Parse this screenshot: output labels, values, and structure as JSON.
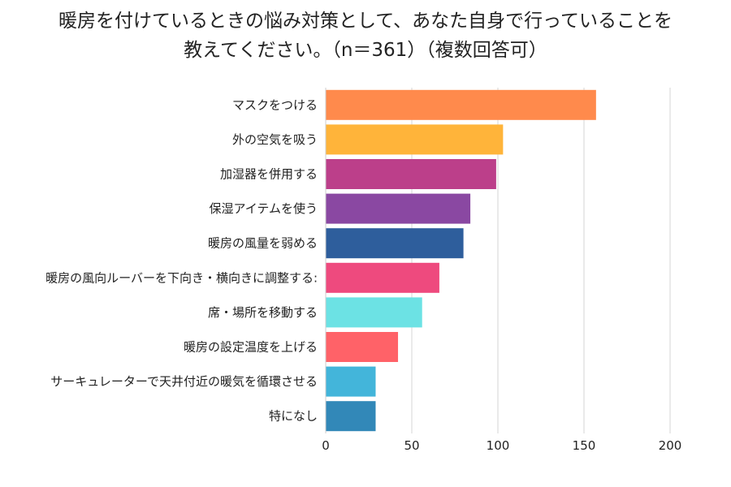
{
  "title_line1": "暖房を付けているときの悩み対策として、あなた自身で行っていることを",
  "title_line2": "教えてください。（n＝361）（複数回答可）",
  "chart_data": {
    "type": "bar",
    "orientation": "horizontal",
    "title": "暖房を付けているときの悩み対策として、あなた自身で行っていることを教えてください。（n＝361）（複数回答可）",
    "categories": [
      "マスクをつける",
      "外の空気を吸う",
      "加湿器を併用する",
      "保湿アイテムを使う",
      "暖房の風量を弱める",
      "暖房の風向ルーバーを下向き・横向きに調整する:",
      "席・場所を移動する",
      "暖房の設定温度を上げる",
      "サーキュレーターで天井付近の暖気を循環させる",
      "特になし"
    ],
    "values": [
      157,
      103,
      99,
      84,
      80,
      66,
      56,
      42,
      29,
      29
    ],
    "colors": [
      "#FF8A4C",
      "#FFB43A",
      "#BC3F8A",
      "#8A48A2",
      "#2E5E9C",
      "#EE4A7E",
      "#6CE2E4",
      "#FF6268",
      "#43B5DA",
      "#3288B8"
    ],
    "xlim": [
      0,
      200
    ],
    "xticks": [
      0,
      50,
      100,
      150,
      200
    ],
    "grid": true,
    "legend": "none"
  }
}
